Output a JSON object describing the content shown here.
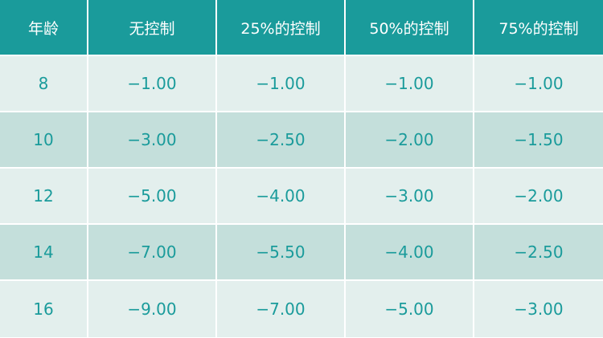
{
  "table": {
    "headers": [
      "年龄",
      "无控制",
      "25%的控制",
      "50%的控制",
      "75%的控制"
    ],
    "rows": [
      [
        "8",
        "−1.00",
        "−1.00",
        "−1.00",
        "−1.00"
      ],
      [
        "10",
        "−3.00",
        "−2.50",
        "−2.00",
        "−1.50"
      ],
      [
        "12",
        "−5.00",
        "−4.00",
        "−3.00",
        "−2.00"
      ],
      [
        "14",
        "−7.00",
        "−5.50",
        "−4.00",
        "−2.50"
      ],
      [
        "16",
        "−9.00",
        "−7.00",
        "−5.00",
        "−3.00"
      ]
    ]
  },
  "colors": {
    "header_bg": "#1a9b9b",
    "header_text": "#ffffff",
    "row_light": "#e3efed",
    "row_dark": "#c4dfdb",
    "cell_text": "#1a9b9b"
  }
}
